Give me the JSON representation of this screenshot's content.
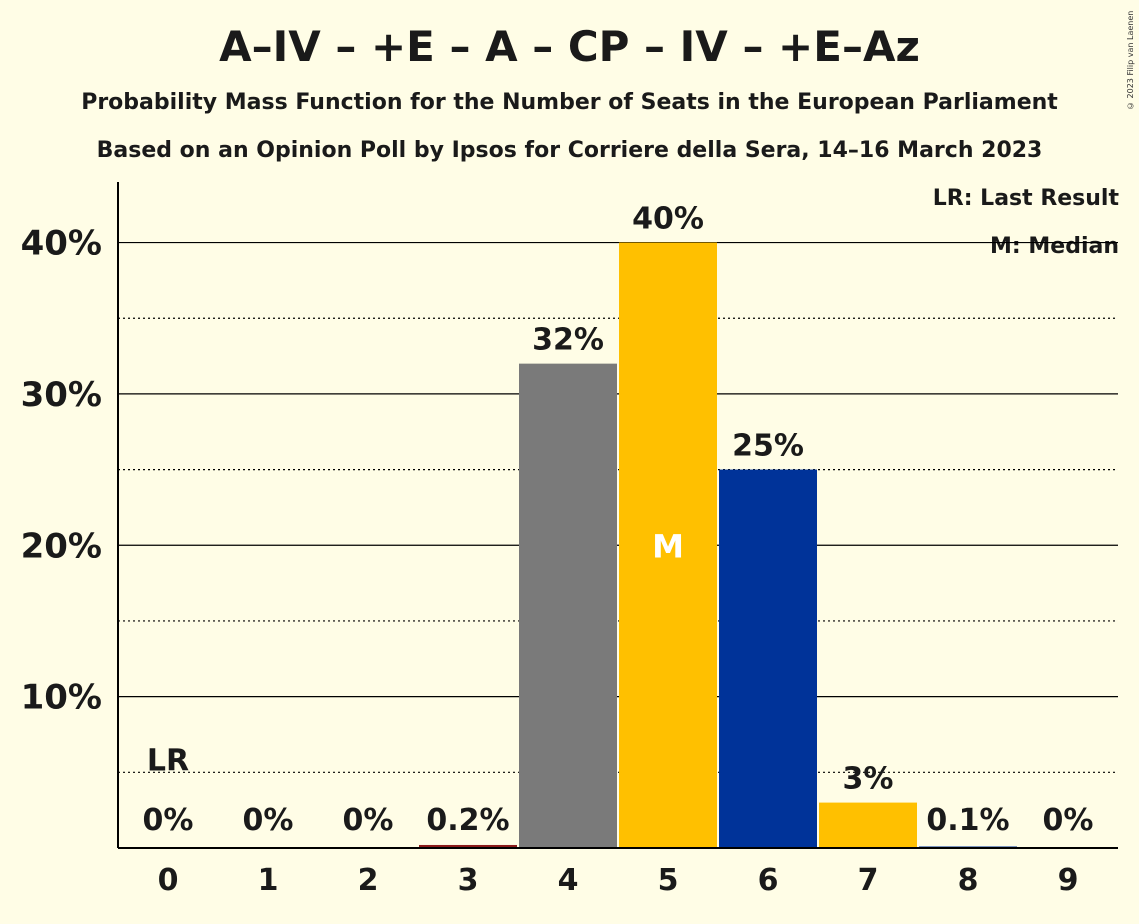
{
  "title": "A–IV – +E – A – CP – IV – +E–Az",
  "subtitle1": "Probability Mass Function for the Number of Seats in the European Parliament",
  "subtitle2": "Based on an Opinion Poll by Ipsos for Corriere della Sera, 14–16 March 2023",
  "copyright": "© 2023 Filip van Laenen",
  "legend": {
    "last_result": "LR: Last Result",
    "median": "M: Median"
  },
  "colors": {
    "background": "#fffde6",
    "grey": "#7a7a7a",
    "yellow": "#ffc000",
    "blue": "#003399",
    "darkred": "#8b1a1a"
  },
  "chart_data": {
    "type": "bar",
    "categories": [
      "0",
      "1",
      "2",
      "3",
      "4",
      "5",
      "6",
      "7",
      "8",
      "9"
    ],
    "values": [
      0,
      0,
      0,
      0.2,
      32,
      40,
      25,
      3,
      0.1,
      0
    ],
    "labels": [
      "0%",
      "0%",
      "0%",
      "0.2%",
      "32%",
      "40%",
      "25%",
      "3%",
      "0.1%",
      "0%"
    ],
    "bar_colors": [
      "#7a7a7a",
      "#7a7a7a",
      "#7a7a7a",
      "#8b1a1a",
      "#7a7a7a",
      "#ffc000",
      "#003399",
      "#ffc000",
      "#003399",
      "#003399"
    ],
    "ylim": [
      0,
      44
    ],
    "yticks": [
      10,
      20,
      30,
      40
    ],
    "ytick_labels": [
      "10%",
      "20%",
      "30%",
      "40%"
    ],
    "minor_gridlines": [
      5,
      15,
      25,
      35
    ],
    "last_result_index": 0,
    "last_result_label": "LR",
    "median_index": 5,
    "median_label": "M"
  }
}
